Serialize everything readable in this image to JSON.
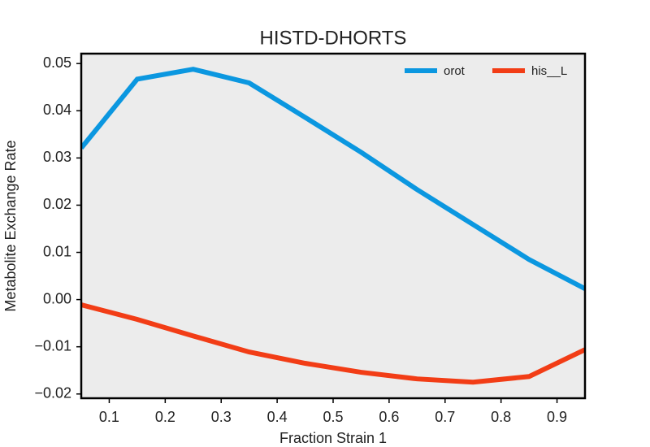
{
  "chart_data": {
    "type": "line",
    "title": "HISTD-DHORTS",
    "x_label": "Fraction Strain 1",
    "y_label": "Metabolite Exchange Rate",
    "x": [
      0.05,
      0.15,
      0.25,
      0.35,
      0.45,
      0.55,
      0.65,
      0.75,
      0.85,
      0.95
    ],
    "series": [
      {
        "name": "orot",
        "color": "#0b97e0",
        "values": [
          0.0321,
          0.0467,
          0.0488,
          0.0459,
          0.0386,
          0.0312,
          0.0233,
          0.0159,
          0.0085,
          0.0023
        ]
      },
      {
        "name": "his__L",
        "color": "#f23d16",
        "values": [
          -0.0011,
          -0.0042,
          -0.0077,
          -0.0111,
          -0.0135,
          -0.0154,
          -0.0168,
          -0.0175,
          -0.0163,
          -0.0106
        ]
      }
    ],
    "xlim": [
      0.05,
      0.95
    ],
    "ylim": [
      -0.0209,
      0.0521
    ],
    "xticks": [
      0.1,
      0.2,
      0.3,
      0.4,
      0.5,
      0.6,
      0.7,
      0.8,
      0.9
    ],
    "yticks": [
      {
        "value": -0.02,
        "label": "−0.02"
      },
      {
        "value": -0.01,
        "label": "−0.01"
      },
      {
        "value": 0,
        "label": "0.00"
      },
      0.01,
      0.02,
      0.03,
      0.04,
      0.05
    ],
    "legend": "upper right"
  }
}
